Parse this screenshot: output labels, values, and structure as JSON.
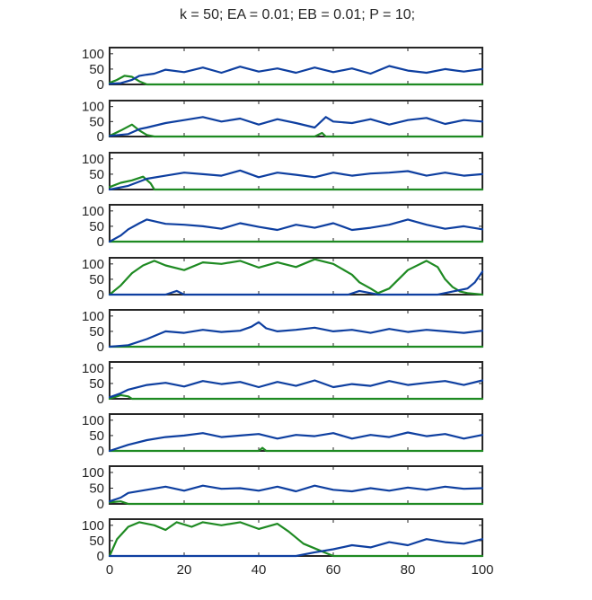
{
  "title": "k = 50;  EA = 0.01;  EB = 0.01;  P = 10;",
  "colors": {
    "series_a": "#0e3fa0",
    "series_b": "#1e8a22",
    "axes": "#262626"
  },
  "chart_data": {
    "type": "line",
    "layout": "10 stacked panels sharing x axis",
    "xlim": [
      0,
      100
    ],
    "ylim": [
      0,
      120
    ],
    "x_ticks": [
      0,
      20,
      40,
      60,
      80,
      100
    ],
    "x_tick_labels": [
      "0",
      "20",
      "40",
      "60",
      "80",
      "100"
    ],
    "y_ticks": [
      0,
      50,
      100
    ],
    "y_tick_labels": [
      "0",
      "50",
      "100"
    ],
    "series_names": [
      "blue",
      "green"
    ],
    "panels": [
      {
        "index": 1,
        "blue": [
          [
            0,
            2
          ],
          [
            3,
            4
          ],
          [
            6,
            15
          ],
          [
            8,
            28
          ],
          [
            10,
            32
          ],
          [
            12,
            35
          ],
          [
            15,
            48
          ],
          [
            20,
            40
          ],
          [
            25,
            55
          ],
          [
            30,
            38
          ],
          [
            35,
            58
          ],
          [
            40,
            42
          ],
          [
            45,
            52
          ],
          [
            50,
            38
          ],
          [
            55,
            55
          ],
          [
            60,
            40
          ],
          [
            65,
            52
          ],
          [
            70,
            35
          ],
          [
            75,
            60
          ],
          [
            80,
            45
          ],
          [
            85,
            38
          ],
          [
            90,
            50
          ],
          [
            95,
            42
          ],
          [
            100,
            50
          ]
        ],
        "green": [
          [
            0,
            5
          ],
          [
            2,
            15
          ],
          [
            4,
            28
          ],
          [
            6,
            25
          ],
          [
            8,
            10
          ],
          [
            10,
            0
          ],
          [
            100,
            0
          ]
        ]
      },
      {
        "index": 2,
        "blue": [
          [
            0,
            2
          ],
          [
            5,
            8
          ],
          [
            8,
            25
          ],
          [
            10,
            30
          ],
          [
            15,
            45
          ],
          [
            20,
            55
          ],
          [
            25,
            65
          ],
          [
            30,
            50
          ],
          [
            35,
            60
          ],
          [
            40,
            40
          ],
          [
            45,
            58
          ],
          [
            50,
            45
          ],
          [
            55,
            30
          ],
          [
            58,
            65
          ],
          [
            60,
            50
          ],
          [
            65,
            45
          ],
          [
            70,
            58
          ],
          [
            75,
            40
          ],
          [
            80,
            55
          ],
          [
            85,
            62
          ],
          [
            90,
            42
          ],
          [
            95,
            55
          ],
          [
            100,
            50
          ]
        ],
        "green": [
          [
            0,
            2
          ],
          [
            3,
            20
          ],
          [
            6,
            40
          ],
          [
            8,
            20
          ],
          [
            10,
            5
          ],
          [
            12,
            0
          ],
          [
            55,
            0
          ],
          [
            57,
            12
          ],
          [
            58,
            0
          ],
          [
            100,
            0
          ]
        ]
      },
      {
        "index": 3,
        "blue": [
          [
            0,
            0
          ],
          [
            5,
            12
          ],
          [
            10,
            35
          ],
          [
            15,
            45
          ],
          [
            20,
            55
          ],
          [
            25,
            50
          ],
          [
            30,
            45
          ],
          [
            35,
            62
          ],
          [
            40,
            40
          ],
          [
            45,
            55
          ],
          [
            50,
            48
          ],
          [
            55,
            40
          ],
          [
            60,
            55
          ],
          [
            65,
            45
          ],
          [
            70,
            52
          ],
          [
            75,
            55
          ],
          [
            80,
            60
          ],
          [
            85,
            45
          ],
          [
            90,
            55
          ],
          [
            95,
            45
          ],
          [
            100,
            50
          ]
        ],
        "green": [
          [
            0,
            8
          ],
          [
            3,
            22
          ],
          [
            6,
            30
          ],
          [
            9,
            42
          ],
          [
            11,
            20
          ],
          [
            12,
            0
          ],
          [
            100,
            0
          ]
        ]
      },
      {
        "index": 4,
        "blue": [
          [
            0,
            0
          ],
          [
            3,
            20
          ],
          [
            5,
            40
          ],
          [
            8,
            60
          ],
          [
            10,
            72
          ],
          [
            15,
            58
          ],
          [
            20,
            55
          ],
          [
            25,
            50
          ],
          [
            30,
            42
          ],
          [
            35,
            60
          ],
          [
            40,
            48
          ],
          [
            45,
            38
          ],
          [
            50,
            55
          ],
          [
            55,
            45
          ],
          [
            60,
            60
          ],
          [
            65,
            38
          ],
          [
            70,
            45
          ],
          [
            75,
            55
          ],
          [
            80,
            72
          ],
          [
            85,
            55
          ],
          [
            90,
            42
          ],
          [
            95,
            50
          ],
          [
            100,
            40
          ]
        ],
        "green": [
          [
            0,
            0
          ],
          [
            100,
            0
          ]
        ]
      },
      {
        "index": 5,
        "blue": [
          [
            0,
            0
          ],
          [
            15,
            0
          ],
          [
            18,
            12
          ],
          [
            20,
            0
          ],
          [
            64,
            0
          ],
          [
            67,
            12
          ],
          [
            70,
            5
          ],
          [
            72,
            0
          ],
          [
            88,
            0
          ],
          [
            92,
            10
          ],
          [
            96,
            20
          ],
          [
            98,
            40
          ],
          [
            100,
            75
          ]
        ],
        "green": [
          [
            0,
            0
          ],
          [
            3,
            30
          ],
          [
            6,
            70
          ],
          [
            9,
            95
          ],
          [
            12,
            110
          ],
          [
            15,
            95
          ],
          [
            20,
            80
          ],
          [
            25,
            105
          ],
          [
            30,
            100
          ],
          [
            35,
            110
          ],
          [
            40,
            88
          ],
          [
            45,
            105
          ],
          [
            50,
            90
          ],
          [
            55,
            115
          ],
          [
            60,
            100
          ],
          [
            65,
            65
          ],
          [
            67,
            40
          ],
          [
            70,
            20
          ],
          [
            72,
            5
          ],
          [
            75,
            20
          ],
          [
            80,
            80
          ],
          [
            85,
            110
          ],
          [
            88,
            90
          ],
          [
            90,
            50
          ],
          [
            92,
            25
          ],
          [
            94,
            10
          ],
          [
            96,
            5
          ],
          [
            100,
            0
          ]
        ]
      },
      {
        "index": 6,
        "blue": [
          [
            0,
            0
          ],
          [
            5,
            5
          ],
          [
            10,
            25
          ],
          [
            15,
            50
          ],
          [
            20,
            45
          ],
          [
            25,
            55
          ],
          [
            30,
            48
          ],
          [
            35,
            52
          ],
          [
            38,
            65
          ],
          [
            40,
            80
          ],
          [
            42,
            60
          ],
          [
            45,
            50
          ],
          [
            50,
            55
          ],
          [
            55,
            62
          ],
          [
            60,
            50
          ],
          [
            65,
            55
          ],
          [
            70,
            45
          ],
          [
            75,
            58
          ],
          [
            80,
            48
          ],
          [
            85,
            55
          ],
          [
            90,
            50
          ],
          [
            95,
            45
          ],
          [
            100,
            52
          ]
        ],
        "green": [
          [
            0,
            0
          ],
          [
            100,
            0
          ]
        ]
      },
      {
        "index": 7,
        "blue": [
          [
            0,
            5
          ],
          [
            3,
            18
          ],
          [
            5,
            30
          ],
          [
            10,
            45
          ],
          [
            15,
            52
          ],
          [
            20,
            40
          ],
          [
            25,
            58
          ],
          [
            30,
            48
          ],
          [
            35,
            55
          ],
          [
            40,
            38
          ],
          [
            45,
            55
          ],
          [
            50,
            42
          ],
          [
            55,
            60
          ],
          [
            60,
            38
          ],
          [
            65,
            48
          ],
          [
            70,
            42
          ],
          [
            75,
            58
          ],
          [
            80,
            45
          ],
          [
            85,
            52
          ],
          [
            90,
            58
          ],
          [
            95,
            45
          ],
          [
            100,
            60
          ]
        ],
        "green": [
          [
            0,
            0
          ],
          [
            3,
            12
          ],
          [
            5,
            8
          ],
          [
            6,
            0
          ],
          [
            100,
            0
          ]
        ]
      },
      {
        "index": 8,
        "blue": [
          [
            0,
            0
          ],
          [
            5,
            20
          ],
          [
            10,
            35
          ],
          [
            15,
            45
          ],
          [
            20,
            50
          ],
          [
            25,
            58
          ],
          [
            30,
            45
          ],
          [
            35,
            50
          ],
          [
            40,
            55
          ],
          [
            45,
            40
          ],
          [
            50,
            52
          ],
          [
            55,
            48
          ],
          [
            60,
            58
          ],
          [
            65,
            40
          ],
          [
            70,
            52
          ],
          [
            75,
            45
          ],
          [
            80,
            60
          ],
          [
            85,
            48
          ],
          [
            90,
            55
          ],
          [
            95,
            40
          ],
          [
            100,
            52
          ]
        ],
        "green": [
          [
            0,
            0
          ],
          [
            40,
            0
          ],
          [
            41,
            10
          ],
          [
            42,
            0
          ],
          [
            100,
            0
          ]
        ]
      },
      {
        "index": 9,
        "blue": [
          [
            0,
            8
          ],
          [
            3,
            20
          ],
          [
            5,
            35
          ],
          [
            10,
            45
          ],
          [
            15,
            55
          ],
          [
            20,
            42
          ],
          [
            25,
            58
          ],
          [
            30,
            48
          ],
          [
            35,
            50
          ],
          [
            40,
            42
          ],
          [
            45,
            55
          ],
          [
            50,
            40
          ],
          [
            55,
            58
          ],
          [
            60,
            45
          ],
          [
            65,
            40
          ],
          [
            70,
            50
          ],
          [
            75,
            42
          ],
          [
            80,
            52
          ],
          [
            85,
            45
          ],
          [
            90,
            55
          ],
          [
            95,
            48
          ],
          [
            100,
            50
          ]
        ],
        "green": [
          [
            0,
            5
          ],
          [
            3,
            8
          ],
          [
            5,
            0
          ],
          [
            100,
            0
          ]
        ]
      },
      {
        "index": 10,
        "blue": [
          [
            0,
            0
          ],
          [
            50,
            0
          ],
          [
            55,
            12
          ],
          [
            60,
            22
          ],
          [
            65,
            35
          ],
          [
            70,
            28
          ],
          [
            75,
            45
          ],
          [
            80,
            35
          ],
          [
            85,
            55
          ],
          [
            90,
            45
          ],
          [
            95,
            40
          ],
          [
            100,
            55
          ]
        ],
        "green": [
          [
            0,
            0
          ],
          [
            2,
            55
          ],
          [
            5,
            95
          ],
          [
            8,
            110
          ],
          [
            12,
            100
          ],
          [
            15,
            85
          ],
          [
            18,
            110
          ],
          [
            22,
            95
          ],
          [
            25,
            110
          ],
          [
            30,
            100
          ],
          [
            35,
            110
          ],
          [
            40,
            88
          ],
          [
            45,
            105
          ],
          [
            48,
            80
          ],
          [
            52,
            40
          ],
          [
            56,
            20
          ],
          [
            58,
            10
          ],
          [
            60,
            0
          ],
          [
            100,
            0
          ]
        ]
      }
    ]
  }
}
